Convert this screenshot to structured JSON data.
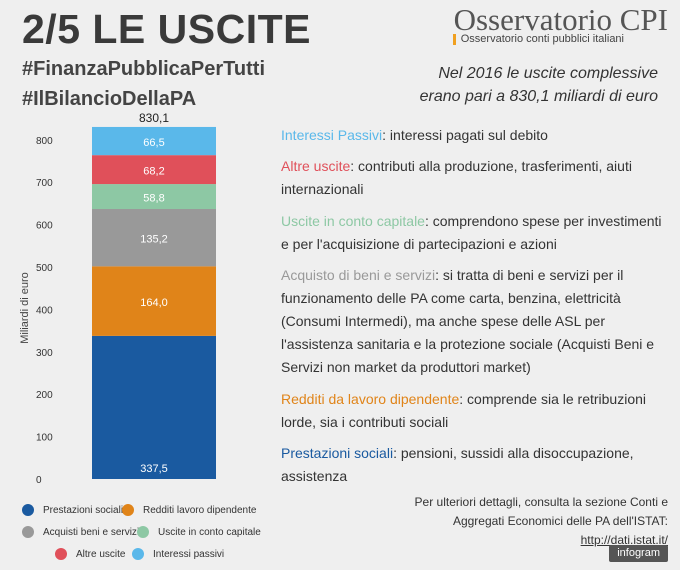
{
  "header": {
    "title": "2/5 LE USCITE",
    "hashtag1": "#FinanzaPubblicaPerTutti",
    "hashtag2": "#IlBilancioDellaPA",
    "brand": "Osservatorio CPI",
    "brand_sub": "Osservatorio conti pubblici italiani",
    "headline_line1": "Nel 2016 le uscite complessive",
    "headline_line2": "erano pari a 830,1 miliardi di euro"
  },
  "colors": {
    "prestazioni": "#1a5aa0",
    "redditi": "#e08419",
    "acquisti": "#999999",
    "capitale": "#8dc8a4",
    "altre": "#e0505a",
    "interessi": "#5ab8ea"
  },
  "chart_data": {
    "type": "bar",
    "stacked": true,
    "categories": [
      ""
    ],
    "ylabel": "Miliardi di euro",
    "ylim": [
      0,
      830.1
    ],
    "yticks": [
      0,
      100,
      200,
      300,
      400,
      500,
      600,
      700,
      800
    ],
    "total_label": "830,1",
    "series": [
      {
        "name": "Prestazioni sociali",
        "values": [
          337.5
        ],
        "label": "337,5",
        "color": "#1a5aa0"
      },
      {
        "name": "Redditi lavoro dipendente",
        "values": [
          164.0
        ],
        "label": "164,0",
        "color": "#e08419"
      },
      {
        "name": "Acquisti beni e servizi",
        "values": [
          135.2
        ],
        "label": "135,2",
        "color": "#999999"
      },
      {
        "name": "Uscite in conto capitale",
        "values": [
          58.8
        ],
        "label": "58,8",
        "color": "#8dc8a4"
      },
      {
        "name": "Altre uscite",
        "values": [
          68.2
        ],
        "label": "68,2",
        "color": "#e0505a"
      },
      {
        "name": "Interessi passivi",
        "values": [
          66.5
        ],
        "label": "66,5",
        "color": "#5ab8ea"
      }
    ],
    "legend": "bottom"
  },
  "descriptions": [
    {
      "key": "Interessi Passivi",
      "text": ": interessi pagati sul debito",
      "color": "#5ab8ea"
    },
    {
      "key": "Altre uscite",
      "text": ": contributi alla produzione, trasferimenti, aiuti internazionali",
      "color": "#e0505a"
    },
    {
      "key": "Uscite in conto capitale",
      "text": ": comprendono spese per investimenti e per l'acquisizione di partecipazioni e azioni",
      "color": "#8dc8a4"
    },
    {
      "key": "Acquisto di beni e servizi",
      "text": ": si tratta di beni e servizi per il funzionamento delle PA come carta, benzina, elettricità (Consumi Intermedi), ma anche spese delle ASL per l'assistenza sanitaria e la protezione sociale (Acquisti Beni e Servizi non market da produttori market)",
      "color": "#999999"
    },
    {
      "key": "Redditi da lavoro dipendente",
      "text": ": comprende sia le retribuzioni lorde, sia i contributi sociali",
      "color": "#e08419"
    },
    {
      "key": "Prestazioni sociali",
      "text": ": pensioni, sussidi alla disoccupazione, assistenza",
      "color": "#1a5aa0"
    }
  ],
  "footer": {
    "line1": "Per ulteriori dettagli, consulta la sezione Conti e",
    "line2": "Aggregati Economici delle PA dell'ISTAT:",
    "link": "http://dati.istat.it/",
    "badge": "infogram"
  }
}
